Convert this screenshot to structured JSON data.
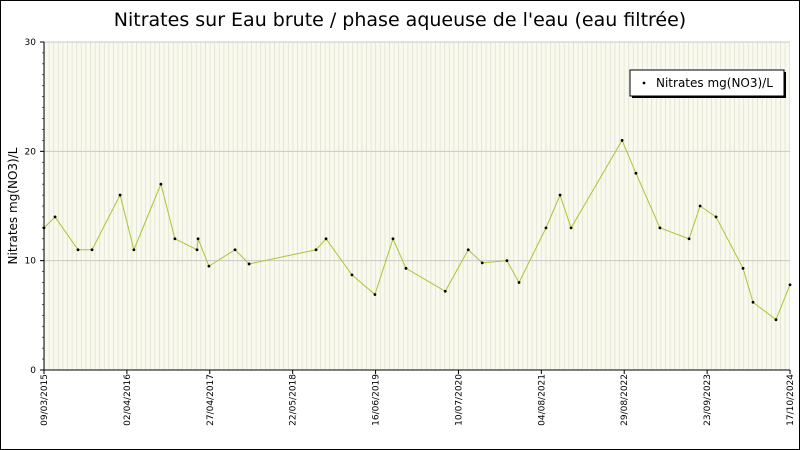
{
  "chart_data": {
    "type": "line",
    "title": "Nitrates sur Eau brute / phase aqueuse de l'eau (eau filtrée)",
    "y_label": "Nitrates mg(NO3)/L",
    "x": [
      "2015-03-09",
      "2015-04-30",
      "2015-08-16",
      "2015-10-21",
      "2016-03-01",
      "2016-05-05",
      "2016-09-09",
      "2016-11-14",
      "2017-02-26",
      "2017-03-03",
      "2017-04-23",
      "2017-08-24",
      "2017-10-29",
      "2018-09-09",
      "2018-10-26",
      "2019-02-25",
      "2019-06-13",
      "2019-09-06",
      "2019-11-06",
      "2020-05-09",
      "2020-08-25",
      "2020-10-30",
      "2021-02-23",
      "2021-04-21",
      "2021-08-26",
      "2021-10-31",
      "2021-12-22",
      "2022-08-19",
      "2022-10-23",
      "2023-02-13",
      "2023-06-30",
      "2023-08-21",
      "2023-11-04",
      "2024-03-10",
      "2024-04-26",
      "2024-08-12",
      "2024-10-17"
    ],
    "series": [
      {
        "name": "Nitrates mg(NO3)/L",
        "color": "#a8c832",
        "marker_color": "#000000",
        "values": [
          13,
          14,
          11,
          11,
          16,
          11,
          17,
          12,
          11,
          12,
          9.5,
          11,
          9.7,
          11,
          12,
          8.7,
          6.9,
          12,
          9.3,
          7.2,
          11,
          9.8,
          10,
          8,
          13,
          16,
          13,
          21,
          18,
          13,
          12,
          15,
          14,
          9.3,
          6.2,
          4.6,
          7.8
        ]
      }
    ],
    "xlim": [
      "2015-03-09",
      "2024-10-17"
    ],
    "xticks": [
      {
        "value": "2015-03-09",
        "label": "09/03/2015"
      },
      {
        "value": "2016-04-02",
        "label": "02/04/2016"
      },
      {
        "value": "2017-04-27",
        "label": "27/04/2017"
      },
      {
        "value": "2018-05-22",
        "label": "22/05/2018"
      },
      {
        "value": "2019-06-16",
        "label": "16/06/2019"
      },
      {
        "value": "2020-07-10",
        "label": "10/07/2020"
      },
      {
        "value": "2021-08-04",
        "label": "04/08/2021"
      },
      {
        "value": "2022-08-29",
        "label": "29/08/2022"
      },
      {
        "value": "2023-09-23",
        "label": "23/09/2023"
      },
      {
        "value": "2024-10-17",
        "label": "17/10/2024"
      }
    ],
    "ylim": [
      0,
      30
    ],
    "yticks": [
      0,
      10,
      20,
      30
    ],
    "grid": true,
    "legend": "upper right"
  }
}
